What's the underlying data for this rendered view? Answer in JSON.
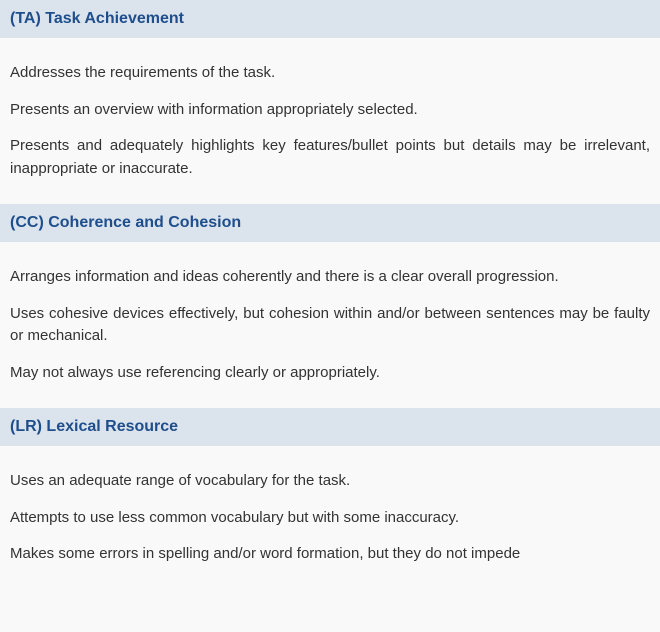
{
  "colors": {
    "header_bg": "#dbe3ec",
    "header_text": "#1e4e8c",
    "body_text": "#333333",
    "page_bg": "#f9f9f9"
  },
  "typography": {
    "header_fontsize": 16,
    "header_weight": "600",
    "body_fontsize": 15,
    "body_lineheight": 1.5,
    "body_align": "justify",
    "font_family": "Segoe UI, Helvetica Neue, Arial, sans-serif"
  },
  "sections": [
    {
      "code": "(TA)",
      "title": "Task Achievement",
      "header": "(TA) Task Achievement",
      "items": [
        "Addresses the requirements of the task.",
        "Presents an overview with information appropriately selected.",
        "Presents and adequately highlights key features/bullet points but details may be irrelevant, inappropriate or inaccurate."
      ]
    },
    {
      "code": "(CC)",
      "title": "Coherence and Cohesion",
      "header": "(CC) Coherence and Cohesion",
      "items": [
        "Arranges information and ideas coherently and there is a clear overall progression.",
        "Uses cohesive devices effectively, but cohesion within and/or between sentences may be faulty or mechanical.",
        "May not always use referencing clearly or appropriately."
      ]
    },
    {
      "code": "(LR)",
      "title": "Lexical Resource",
      "header": "(LR) Lexical Resource",
      "items": [
        "Uses an adequate range of vocabulary for the task.",
        "Attempts to use less common vocabulary but with some inaccuracy.",
        "Makes some errors in spelling and/or word formation, but they do not impede"
      ]
    }
  ]
}
